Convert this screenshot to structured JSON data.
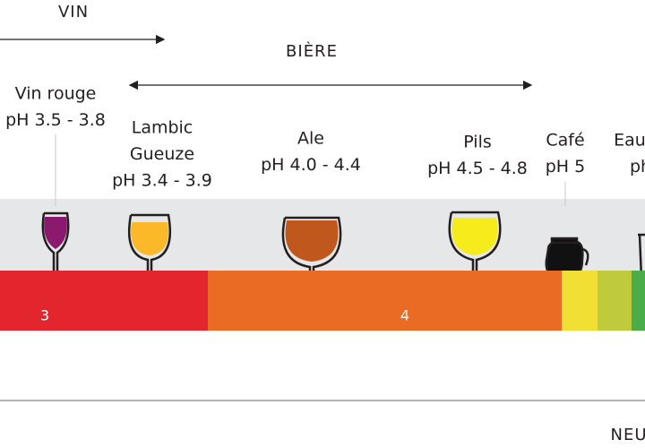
{
  "header": {
    "wine": "VIN",
    "beer": "BIÈRE"
  },
  "drinks": [
    {
      "lines": [
        "Vin rouge",
        "pH 3.5 - 3.8"
      ]
    },
    {
      "lines": [
        "Lambic",
        "Gueuze",
        "pH 3.4 - 3.9"
      ]
    },
    {
      "lines": [
        "Ale",
        "pH 4.0 - 4.4"
      ]
    },
    {
      "lines": [
        "Pils",
        "pH 4.5 - 4.8"
      ]
    },
    {
      "lines": [
        "Café",
        "pH 5"
      ]
    },
    {
      "lines": [
        "Eau",
        "ph"
      ]
    }
  ],
  "scale": [
    "3",
    "4"
  ],
  "footer": {
    "neutral": "NEU"
  }
}
